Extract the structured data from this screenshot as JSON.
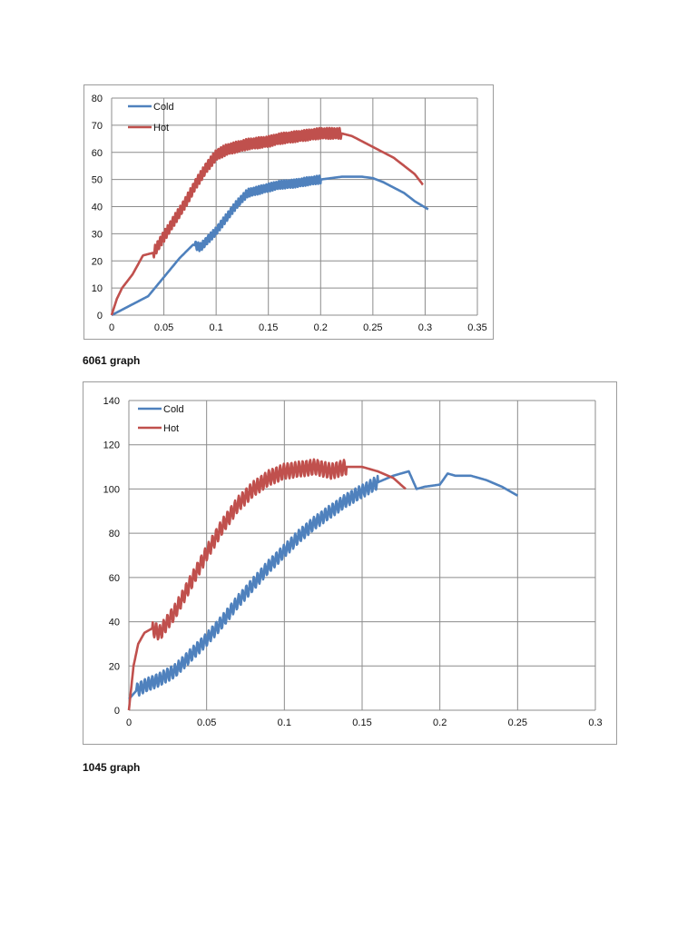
{
  "colors": {
    "cold": "#4f81bd",
    "hot": "#c0504d",
    "grid": "#8c8c8c"
  },
  "chart_data": [
    {
      "type": "line",
      "title": "",
      "xlabel": "",
      "ylabel": "",
      "xlim": [
        0,
        0.35
      ],
      "ylim": [
        0,
        80
      ],
      "x_ticks": [
        "0",
        "0.05",
        "0.1",
        "0.15",
        "0.2",
        "0.25",
        "0.3",
        "0.35"
      ],
      "y_ticks": [
        "0",
        "10",
        "20",
        "30",
        "40",
        "50",
        "60",
        "70",
        "80"
      ],
      "grid": true,
      "legend_position": "top-left",
      "series": [
        {
          "name": "Cold",
          "color": "#4f81bd",
          "x": [
            0,
            0.01,
            0.02,
            0.035,
            0.05,
            0.065,
            0.078,
            0.085,
            0.1,
            0.11,
            0.12,
            0.13,
            0.14,
            0.15,
            0.16,
            0.175,
            0.19,
            0.2,
            0.21,
            0.22,
            0.23,
            0.24,
            0.25,
            0.26,
            0.27,
            0.28,
            0.29,
            0.303
          ],
          "y": [
            0,
            2,
            4,
            7,
            14,
            21,
            26,
            25,
            31,
            36,
            41,
            45,
            46,
            47,
            48,
            48.5,
            49.5,
            50,
            50.5,
            51,
            51,
            51,
            50.5,
            49,
            47,
            45,
            42,
            39
          ],
          "noise": 1.5,
          "noise_range": [
            0.08,
            0.2
          ]
        },
        {
          "name": "Hot",
          "color": "#c0504d",
          "x": [
            0,
            0.005,
            0.01,
            0.02,
            0.03,
            0.04,
            0.05,
            0.06,
            0.07,
            0.08,
            0.09,
            0.1,
            0.11,
            0.12,
            0.13,
            0.14,
            0.15,
            0.16,
            0.17,
            0.18,
            0.19,
            0.2,
            0.21,
            0.22,
            0.23,
            0.24,
            0.25,
            0.26,
            0.27,
            0.28,
            0.29,
            0.298
          ],
          "y": [
            0,
            6,
            10,
            15,
            22,
            23,
            29,
            35,
            41,
            48,
            54,
            59,
            61,
            62,
            63,
            63.5,
            64,
            65,
            65.5,
            66,
            66.5,
            67,
            67,
            67,
            66,
            64,
            62,
            60,
            58,
            55,
            52,
            48
          ],
          "noise": 2,
          "noise_range": [
            0.04,
            0.22
          ]
        }
      ]
    },
    {
      "type": "line",
      "title": "",
      "xlabel": "",
      "ylabel": "",
      "xlim": [
        0,
        0.3
      ],
      "ylim": [
        0,
        140
      ],
      "x_ticks": [
        "0",
        "0.05",
        "0.1",
        "0.15",
        "0.2",
        "0.25",
        "0.3"
      ],
      "y_ticks": [
        "0",
        "20",
        "40",
        "60",
        "80",
        "100",
        "120",
        "140"
      ],
      "grid": true,
      "legend_position": "top-left",
      "series": [
        {
          "name": "Cold",
          "color": "#4f81bd",
          "x": [
            0,
            0.005,
            0.01,
            0.02,
            0.03,
            0.04,
            0.05,
            0.06,
            0.07,
            0.08,
            0.09,
            0.1,
            0.11,
            0.12,
            0.13,
            0.14,
            0.15,
            0.16,
            0.17,
            0.18,
            0.185,
            0.19,
            0.2,
            0.205,
            0.21,
            0.22,
            0.23,
            0.24,
            0.25
          ],
          "y": [
            5,
            9,
            11,
            14,
            18,
            25,
            32,
            40,
            49,
            57,
            65,
            72,
            79,
            85,
            90,
            95,
            99,
            103,
            106,
            108,
            100,
            101,
            102,
            107,
            106,
            106,
            104,
            101,
            97
          ],
          "noise": 3,
          "noise_range": [
            0.005,
            0.16
          ]
        },
        {
          "name": "Hot",
          "color": "#c0504d",
          "x": [
            0,
            0.003,
            0.006,
            0.01,
            0.015,
            0.02,
            0.03,
            0.04,
            0.05,
            0.06,
            0.07,
            0.08,
            0.09,
            0.1,
            0.11,
            0.12,
            0.13,
            0.14,
            0.15,
            0.16,
            0.17,
            0.178
          ],
          "y": [
            0,
            20,
            30,
            35,
            37,
            35,
            45,
            58,
            71,
            83,
            93,
            100,
            105,
            108,
            109,
            110,
            108,
            110,
            110,
            108,
            105,
            100
          ],
          "noise": 3.5,
          "noise_range": [
            0.015,
            0.14
          ]
        }
      ]
    }
  ],
  "captions": {
    "first": "6061 graph",
    "second": "1045 graph"
  }
}
